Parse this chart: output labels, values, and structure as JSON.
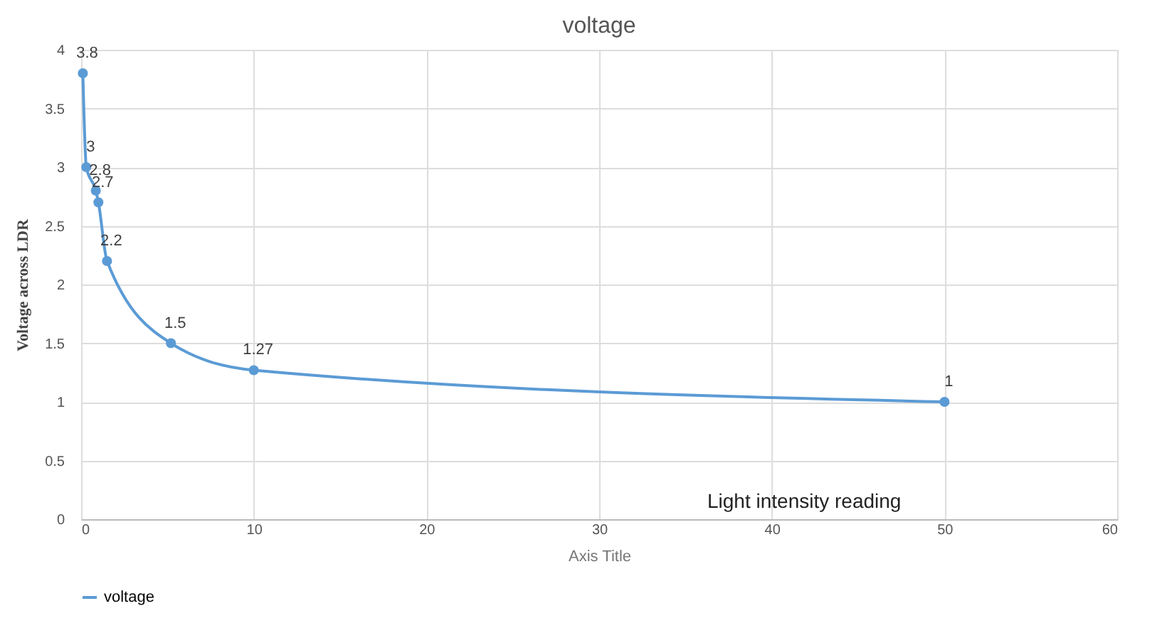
{
  "chart_data": {
    "type": "line",
    "title": "voltage",
    "xlabel": "Axis Title",
    "ylabel": "Voltage across LDR",
    "annotations": [
      "Light intensity reading"
    ],
    "x": [
      0.1,
      0.3,
      0.85,
      1.0,
      1.5,
      5.2,
      10,
      50
    ],
    "series": [
      {
        "name": "voltage",
        "color": "#5b9bd5",
        "values": [
          3.8,
          3,
          2.8,
          2.7,
          2.2,
          1.5,
          1.27,
          1
        ]
      }
    ],
    "xlim": [
      0,
      60
    ],
    "xticks": [
      0,
      10,
      20,
      30,
      40,
      50,
      60
    ],
    "ylim": [
      0,
      4
    ],
    "yticks": [
      0,
      0.5,
      1,
      1.5,
      2,
      2.5,
      3,
      3.5,
      4
    ],
    "grid": true,
    "legend": "bottom",
    "marker": "circle",
    "line_style": "solid",
    "data_labels": true
  }
}
